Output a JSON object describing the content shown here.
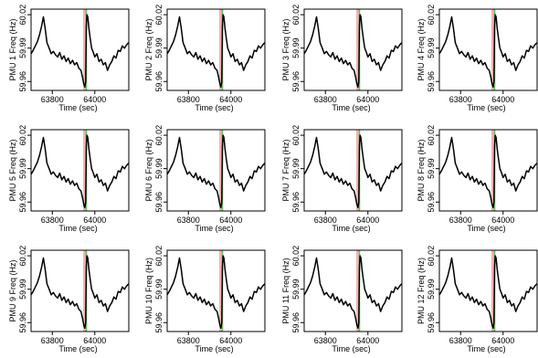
{
  "chart_data": [
    {
      "type": "line",
      "ylabel": "PMU 1 Freq (Hz)",
      "xlabel": "Time (sec)"
    },
    {
      "type": "line",
      "ylabel": "PMU 2 Freq (Hz)",
      "xlabel": "Time (sec)"
    },
    {
      "type": "line",
      "ylabel": "PMU 3 Freq (Hz)",
      "xlabel": "Time (sec)"
    },
    {
      "type": "line",
      "ylabel": "PMU 4 Freq (Hz)",
      "xlabel": "Time (sec)"
    },
    {
      "type": "line",
      "ylabel": "PMU 5 Freq (Hz)",
      "xlabel": "Time (sec)"
    },
    {
      "type": "line",
      "ylabel": "PMU 6 Freq (Hz)",
      "xlabel": "Time (sec)"
    },
    {
      "type": "line",
      "ylabel": "PMU 7 Freq (Hz)",
      "xlabel": "Time (sec)"
    },
    {
      "type": "line",
      "ylabel": "PMU 8 Freq (Hz)",
      "xlabel": "Time (sec)"
    },
    {
      "type": "line",
      "ylabel": "PMU 9 Freq (Hz)",
      "xlabel": "Time (sec)"
    },
    {
      "type": "line",
      "ylabel": "PMU 10 Freq (Hz)",
      "xlabel": "Time (sec)"
    },
    {
      "type": "line",
      "ylabel": "PMU 11 Freq (Hz)",
      "xlabel": "Time (sec)"
    },
    {
      "type": "line",
      "ylabel": "PMU 12 Freq (Hz)",
      "xlabel": "Time (sec)"
    }
  ],
  "shared": {
    "xticks": [
      63800,
      64000
    ],
    "xtick_labels": [
      "63800",
      "64000"
    ],
    "yticks": [
      59.96,
      59.99,
      60.02
    ],
    "ytick_labels": [
      "59.96",
      "59.99",
      "60.02"
    ],
    "xlim": [
      63700,
      64160
    ],
    "ylim": [
      59.952,
      60.025
    ],
    "highlight_band": [
      63945,
      63960
    ],
    "event_line_x": 63960,
    "colors": {
      "series": "#000000",
      "band": "#f4b3b3",
      "event_line": "#5cc35c"
    },
    "series_x": [
      63700,
      63710,
      63720,
      63730,
      63740,
      63750,
      63758,
      63766,
      63775,
      63785,
      63795,
      63805,
      63815,
      63825,
      63835,
      63845,
      63855,
      63865,
      63875,
      63885,
      63895,
      63905,
      63915,
      63925,
      63935,
      63942,
      63948,
      63953,
      63957,
      63960,
      63963,
      63967,
      63972,
      63978,
      63985,
      63993,
      64000,
      64010,
      64020,
      64030,
      64040,
      64050,
      64060,
      64070,
      64080,
      64090,
      64100,
      64110,
      64120,
      64130,
      64140,
      64150,
      64160
    ],
    "series_y": [
      59.985,
      59.988,
      59.992,
      59.996,
      60.002,
      60.01,
      60.018,
      60.008,
      59.995,
      59.99,
      59.985,
      59.987,
      59.984,
      59.982,
      59.986,
      59.98,
      59.983,
      59.978,
      59.981,
      59.976,
      59.979,
      59.975,
      59.977,
      59.972,
      59.97,
      59.964,
      59.958,
      59.955,
      59.96,
      60.01,
      60.02,
      60.018,
      60.008,
      59.999,
      59.99,
      59.986,
      59.982,
      59.985,
      59.978,
      59.98,
      59.975,
      59.977,
      59.97,
      59.975,
      59.978,
      59.983,
      59.981,
      59.988,
      59.987,
      59.992,
      59.99,
      59.993,
      59.995
    ]
  }
}
